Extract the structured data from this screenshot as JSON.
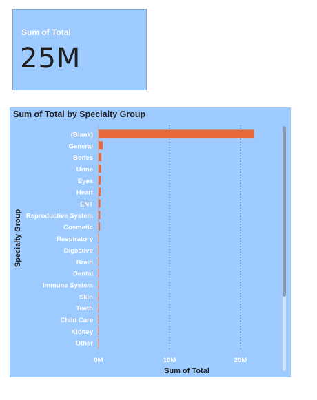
{
  "card": {
    "label": "Sum of Total",
    "value": "25M"
  },
  "chart_data": {
    "type": "bar",
    "orientation": "horizontal",
    "title": "Sum of Total by Specialty Group",
    "xlabel": "Sum of Total",
    "ylabel": "Specialty Group",
    "categories": [
      "(Blank)",
      "General",
      "Bones",
      "Urine",
      "Eyes",
      "Heart",
      "ENT",
      "Reproductive System",
      "Cosmetic",
      "Respiratory",
      "Digestive",
      "Brain",
      "Dental",
      "Immune System",
      "Skin",
      "Teeth",
      "Child Care",
      "Kidney",
      "Other"
    ],
    "values": [
      21900000,
      600000,
      400000,
      350000,
      300000,
      300000,
      250000,
      220000,
      200000,
      60000,
      50000,
      40000,
      35000,
      30000,
      25000,
      20000,
      15000,
      10000,
      8000
    ],
    "xticks": [
      "0M",
      "10M",
      "20M"
    ],
    "xtick_values": [
      0,
      10000000,
      20000000
    ],
    "xlim": [
      0,
      23000000
    ],
    "grid": "vertical-dotted",
    "bar_color": "#e8693a",
    "panel_color": "#9ecbff",
    "label_color": "#ffffff"
  }
}
